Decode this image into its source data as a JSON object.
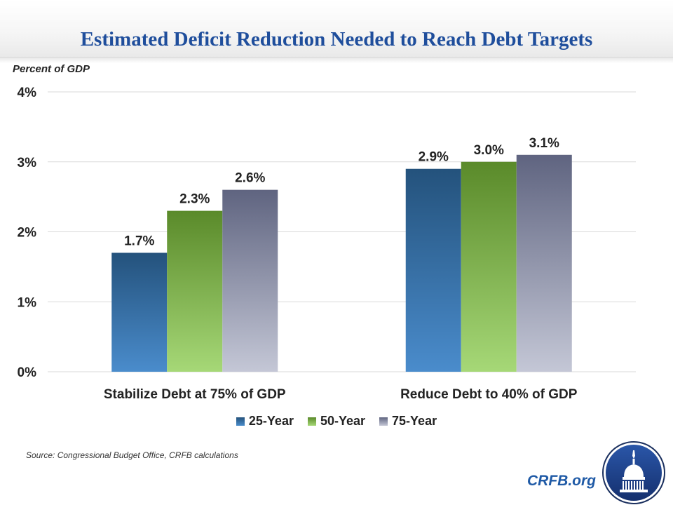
{
  "slide": {
    "title": "Estimated Deficit Reduction Needed to Reach Debt Targets",
    "source": "Source: Congressional  Budget Office, CRFB calculations",
    "brand_text": "CRFB.org",
    "logo_icon": "capitol-dome-icon"
  },
  "colors": {
    "title": "#1f4e9c",
    "brand": "#1f5aa6",
    "series_25": [
      "#24527c",
      "#4a8ccc"
    ],
    "series_50": [
      "#5a8a2a",
      "#a6d877"
    ],
    "series_75": [
      "#5f6480",
      "#c4c7d6"
    ],
    "gridline": "#d9d9d9"
  },
  "chart_data": {
    "type": "bar",
    "title": "Estimated Deficit Reduction Needed to Reach Debt Targets",
    "xlabel": "",
    "ylabel": "Percent of GDP",
    "ylim": [
      0,
      4
    ],
    "yticks": [
      0,
      1,
      2,
      3,
      4
    ],
    "ytick_labels": [
      "0%",
      "1%",
      "2%",
      "3%",
      "4%"
    ],
    "grid": true,
    "legend_position": "bottom",
    "categories": [
      "Stabilize Debt at 75% of GDP",
      "Reduce Debt to 40% of GDP"
    ],
    "series": [
      {
        "name": "25-Year",
        "values": [
          1.7,
          2.9
        ],
        "labels": [
          "1.7%",
          "2.9%"
        ]
      },
      {
        "name": "50-Year",
        "values": [
          2.3,
          3.0
        ],
        "labels": [
          "2.3%",
          "3.0%"
        ]
      },
      {
        "name": "75-Year",
        "values": [
          2.6,
          3.1
        ],
        "labels": [
          "2.6%",
          "3.1%"
        ]
      }
    ]
  }
}
